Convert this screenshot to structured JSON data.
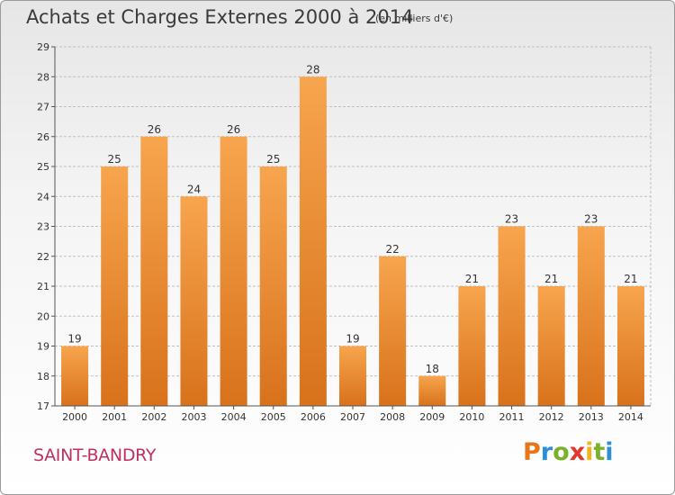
{
  "header": {
    "title": "Achats et Charges Externes 2000 à 2014",
    "unit": "(en milliers d'€)"
  },
  "footer": {
    "city": "SAINT-BANDRY",
    "logo": "Proxiti"
  },
  "colors": {
    "bar_light": "#f7a54e",
    "bar_dark": "#d8721b",
    "grid": "#bfbfbf",
    "city_text": "#c0305e"
  },
  "chart_data": {
    "type": "bar",
    "categories": [
      "2000",
      "2001",
      "2002",
      "2003",
      "2004",
      "2005",
      "2006",
      "2007",
      "2008",
      "2009",
      "2010",
      "2011",
      "2012",
      "2013",
      "2014"
    ],
    "values": [
      19,
      25,
      26,
      24,
      26,
      25,
      28,
      19,
      22,
      18,
      21,
      23,
      21,
      23,
      21
    ],
    "ylim": [
      17,
      29
    ],
    "yticks": [
      17,
      18,
      19,
      20,
      21,
      22,
      23,
      24,
      25,
      26,
      27,
      28,
      29
    ],
    "grid": true,
    "data_labels": true
  }
}
